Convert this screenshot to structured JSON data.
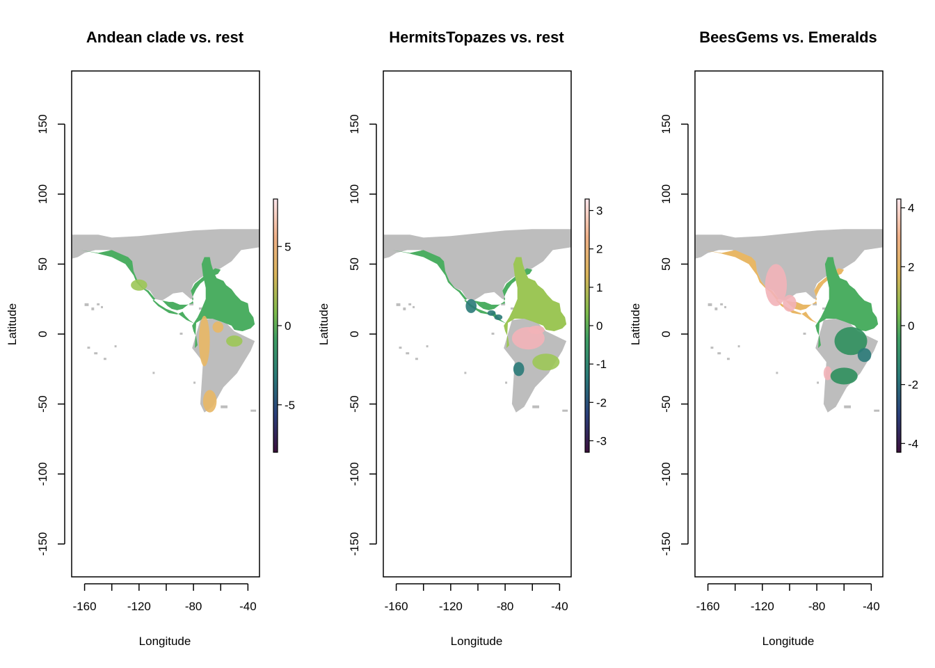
{
  "panels": [
    {
      "title": "Andean clade vs. rest",
      "xlabel": "Longitude",
      "ylabel": "Latitude",
      "legend_ticks": [
        "5",
        "0",
        "-5"
      ],
      "legend_values": [
        5,
        0,
        -5
      ],
      "legend_range": [
        -8,
        8
      ],
      "palette": "Andean: mostly green, orange/yellow along Andes and Patagonia"
    },
    {
      "title": "HermitsTopazes vs. rest",
      "xlabel": "Longitude",
      "ylabel": "Latitude",
      "legend_ticks": [
        "3",
        "2",
        "1",
        "0",
        "-1",
        "-2",
        "-3"
      ],
      "legend_values": [
        3,
        2,
        1,
        0,
        -1,
        -2,
        -3
      ],
      "legend_range": [
        -3.3,
        3.3
      ],
      "palette": "Hermits: pink Amazon, green elsewhere"
    },
    {
      "title": "BeesGems vs. Emeralds",
      "xlabel": "Longitude",
      "ylabel": "Latitude",
      "legend_ticks": [
        "4",
        "2",
        "0",
        "-2",
        "-4"
      ],
      "legend_values": [
        4,
        2,
        0,
        -2,
        -4
      ],
      "legend_range": [
        -4.3,
        4.3
      ],
      "palette": "BeesGems: orange/pink North America, green South America"
    }
  ],
  "axes": {
    "x_ticks": [
      "-160",
      "-120",
      "-80",
      "-40"
    ],
    "x_tick_values": [
      -160,
      -120,
      -80,
      -40
    ],
    "x_minor_values": [
      -160,
      -140,
      -120,
      -100,
      -80,
      -60,
      -40
    ],
    "y_ticks": [
      "150",
      "100",
      "50",
      "0",
      "-50",
      "-100",
      "-150"
    ],
    "y_tick_values": [
      150,
      100,
      50,
      0,
      -50,
      -100,
      -150
    ],
    "xlim": [
      -169.5,
      -31.5
    ],
    "ylim": [
      -173.5,
      188
    ]
  },
  "colors": {
    "land_background": "#bdbdbd",
    "green": "#4cae62",
    "dark_green": "#2f8f5d",
    "teal": "#2a7a78",
    "orange": "#e8b765",
    "yellow_green": "#9cc656",
    "pink": "#f2b3b8"
  }
}
